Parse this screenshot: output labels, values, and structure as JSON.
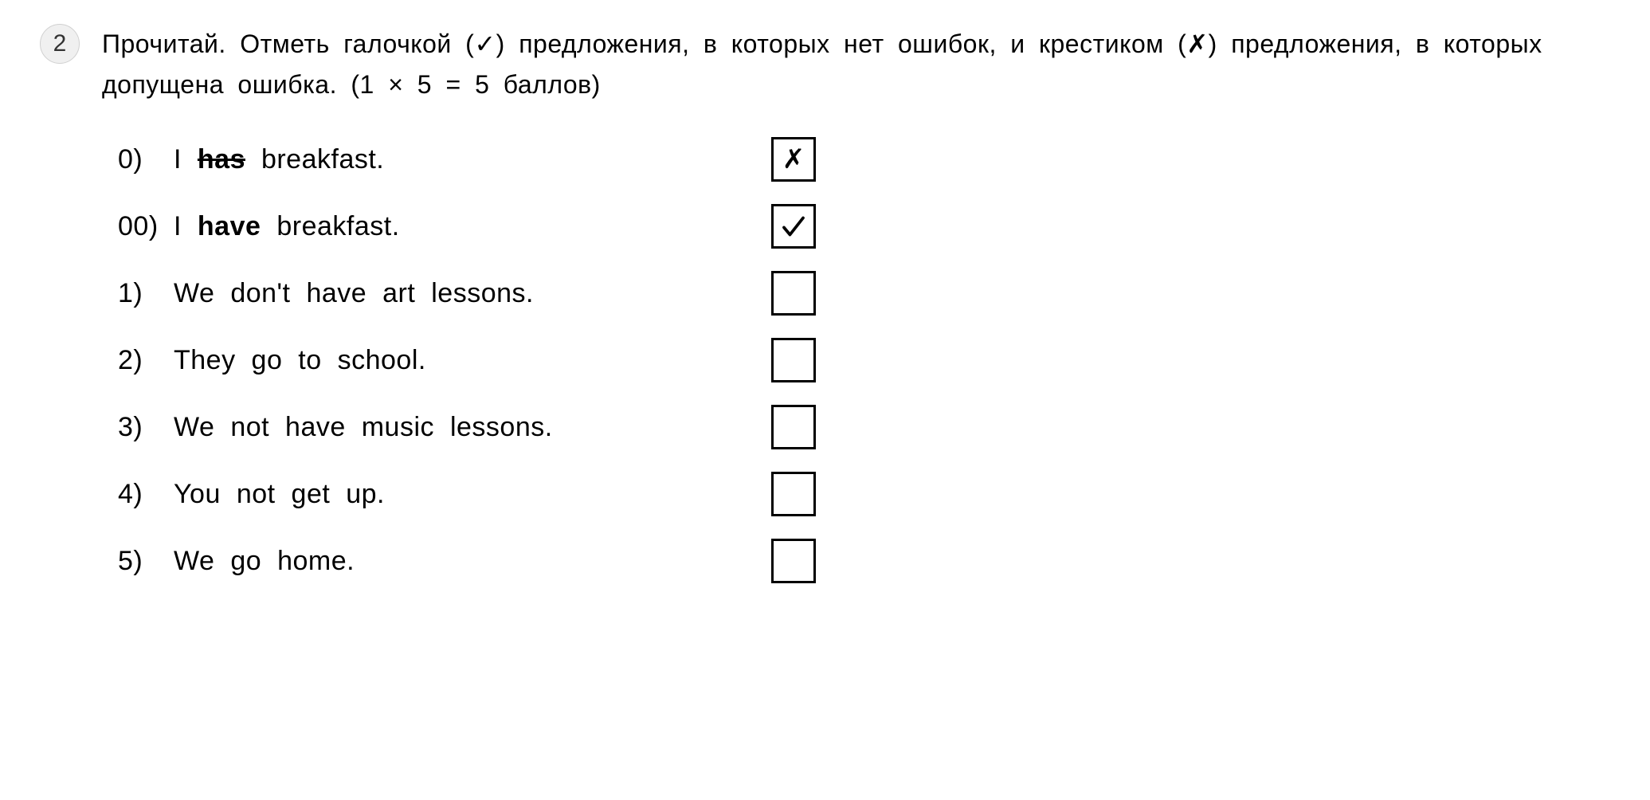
{
  "exercise_number": "2",
  "instruction": "Прочитай. Отметь галочкой (✓) предложения, в которых нет ошибок, и крестиком (✗) предложения, в которых допущена ошибка. (1 × 5 = 5 баллов)",
  "items": [
    {
      "idx": "0)",
      "prefix": "I ",
      "bold": "has",
      "strike": true,
      "suffix": " breakfast.",
      "mark": "x"
    },
    {
      "idx": "00)",
      "prefix": "I ",
      "bold": "have",
      "strike": false,
      "suffix": " breakfast.",
      "mark": "check"
    },
    {
      "idx": "1)",
      "prefix": "We don't have art lessons.",
      "bold": "",
      "strike": false,
      "suffix": "",
      "mark": ""
    },
    {
      "idx": "2)",
      "prefix": "They go to school.",
      "bold": "",
      "strike": false,
      "suffix": "",
      "mark": ""
    },
    {
      "idx": "3)",
      "prefix": "We not have music lessons.",
      "bold": "",
      "strike": false,
      "suffix": "",
      "mark": ""
    },
    {
      "idx": "4)",
      "prefix": "You not get up.",
      "bold": "",
      "strike": false,
      "suffix": "",
      "mark": ""
    },
    {
      "idx": "5)",
      "prefix": "We go home.",
      "bold": "",
      "strike": false,
      "suffix": "",
      "mark": ""
    }
  ],
  "colors": {
    "circle_bg": "#f0f0f0",
    "circle_border": "#d0d0d0",
    "text": "#000000",
    "box_border": "#000000",
    "background": "#ffffff"
  }
}
